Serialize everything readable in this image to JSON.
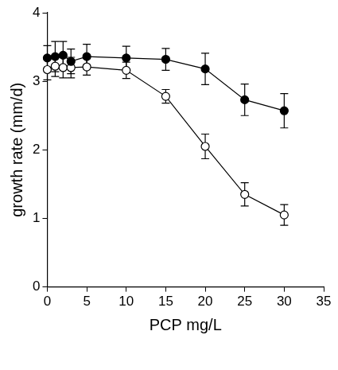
{
  "chart_data": {
    "type": "line",
    "x_label": "PCP mg/L",
    "y_label": "growth rate (mm/d)",
    "x": [
      0,
      1,
      2,
      3,
      5,
      10,
      15,
      20,
      25,
      30
    ],
    "series": [
      {
        "color": "#000000",
        "marker": "circle_filled",
        "line_style": "solid",
        "values": [
          3.34,
          3.36,
          3.38,
          3.29,
          3.36,
          3.34,
          3.32,
          3.18,
          2.73,
          2.57
        ],
        "errors": [
          0.18,
          0.22,
          0.2,
          0.18,
          0.18,
          0.17,
          0.16,
          0.23,
          0.23,
          0.25
        ]
      },
      {
        "color": "#000000",
        "marker": "circle_open",
        "line_style": "solid",
        "values": [
          3.17,
          3.22,
          3.2,
          3.2,
          3.21,
          3.16,
          2.78,
          2.05,
          1.35,
          1.05
        ],
        "errors": [
          0.15,
          0.15,
          0.15,
          0.15,
          0.12,
          0.12,
          0.1,
          0.18,
          0.17,
          0.15
        ]
      }
    ],
    "xlim": [
      0,
      35
    ],
    "xticks": [
      0,
      5,
      10,
      15,
      20,
      25,
      30,
      35
    ],
    "ylim": [
      0,
      4
    ],
    "yticks": [
      0,
      1,
      2,
      3,
      4
    ],
    "grid": false
  }
}
